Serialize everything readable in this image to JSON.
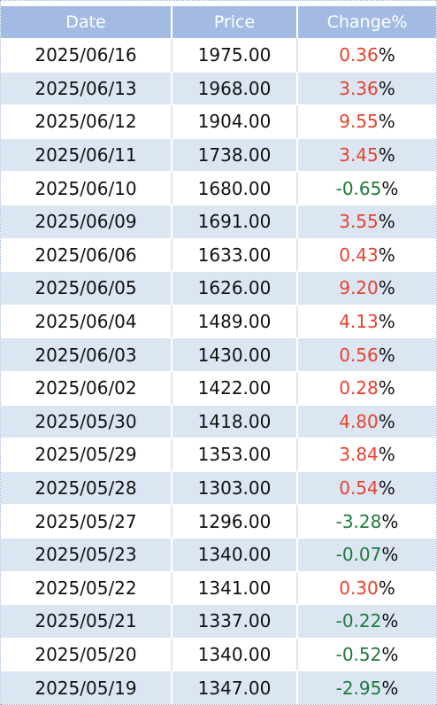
{
  "header": {
    "date": "Date",
    "price": "Price",
    "change": "Change%"
  },
  "percent_sign": "%",
  "rows": [
    {
      "date": "2025/06/16",
      "price": "1975.00",
      "change": "0.36",
      "dir": "up"
    },
    {
      "date": "2025/06/13",
      "price": "1968.00",
      "change": "3.36",
      "dir": "up"
    },
    {
      "date": "2025/06/12",
      "price": "1904.00",
      "change": "9.55",
      "dir": "up"
    },
    {
      "date": "2025/06/11",
      "price": "1738.00",
      "change": "3.45",
      "dir": "up"
    },
    {
      "date": "2025/06/10",
      "price": "1680.00",
      "change": "-0.65",
      "dir": "down"
    },
    {
      "date": "2025/06/09",
      "price": "1691.00",
      "change": "3.55",
      "dir": "up"
    },
    {
      "date": "2025/06/06",
      "price": "1633.00",
      "change": "0.43",
      "dir": "up"
    },
    {
      "date": "2025/06/05",
      "price": "1626.00",
      "change": "9.20",
      "dir": "up"
    },
    {
      "date": "2025/06/04",
      "price": "1489.00",
      "change": "4.13",
      "dir": "up"
    },
    {
      "date": "2025/06/03",
      "price": "1430.00",
      "change": "0.56",
      "dir": "up"
    },
    {
      "date": "2025/06/02",
      "price": "1422.00",
      "change": "0.28",
      "dir": "up"
    },
    {
      "date": "2025/05/30",
      "price": "1418.00",
      "change": "4.80",
      "dir": "up"
    },
    {
      "date": "2025/05/29",
      "price": "1353.00",
      "change": "3.84",
      "dir": "up"
    },
    {
      "date": "2025/05/28",
      "price": "1303.00",
      "change": "0.54",
      "dir": "up"
    },
    {
      "date": "2025/05/27",
      "price": "1296.00",
      "change": "-3.28",
      "dir": "down"
    },
    {
      "date": "2025/05/23",
      "price": "1340.00",
      "change": "-0.07",
      "dir": "down"
    },
    {
      "date": "2025/05/22",
      "price": "1341.00",
      "change": "0.30",
      "dir": "up"
    },
    {
      "date": "2025/05/21",
      "price": "1337.00",
      "change": "-0.22",
      "dir": "down"
    },
    {
      "date": "2025/05/20",
      "price": "1340.00",
      "change": "-0.52",
      "dir": "down"
    },
    {
      "date": "2025/05/19",
      "price": "1347.00",
      "change": "-2.95",
      "dir": "down"
    }
  ],
  "colors": {
    "header_bg": "#a3bbe3",
    "stripe": "#dce6f3",
    "up": "#e8412c",
    "down": "#1e7a3a"
  }
}
